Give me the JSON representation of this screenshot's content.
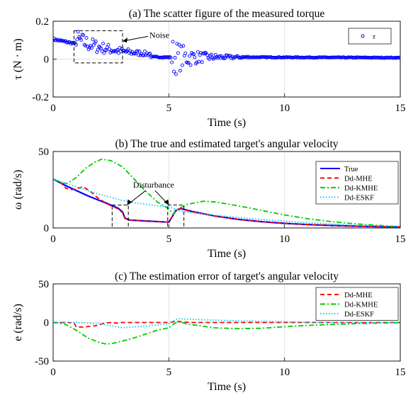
{
  "chart_data": [
    {
      "type": "scatter",
      "title": "(a) The scatter figure of the measured torque",
      "xlabel": "Time (s)",
      "ylabel": "τ (N · m)",
      "xlim": [
        0,
        15
      ],
      "ylim": [
        -0.2,
        0.2
      ],
      "xticks": [
        "0",
        "5",
        "10",
        "15"
      ],
      "yticks": [
        "-0.2",
        "0",
        "0.2"
      ],
      "grid": true,
      "legend_position": "top-right",
      "series": [
        {
          "name": "τ",
          "color": "#0000ff",
          "marker": "circle",
          "points": []
        }
      ],
      "annotations": [
        {
          "text": "Noise",
          "x": 4.1,
          "y": 0.11
        }
      ]
    },
    {
      "type": "line",
      "title": "(b) The true and estimated target's angular velocity",
      "xlabel": "Time (s)",
      "ylabel": "ω (rad/s)",
      "xlim": [
        0,
        15
      ],
      "ylim": [
        0,
        50
      ],
      "xticks": [
        "0",
        "5",
        "10",
        "15"
      ],
      "yticks": [
        "0",
        "50"
      ],
      "grid": true,
      "legend_position": "top-right",
      "series": [
        {
          "name": "True",
          "color": "#0000ff",
          "dash": "solid",
          "x": [
            0,
            0.5,
            1,
            1.5,
            2,
            2.5,
            2.8,
            3.0,
            3.1,
            3.3,
            4,
            5,
            5.15,
            5.3,
            5.5,
            6,
            7,
            8,
            9,
            10,
            11,
            12,
            13,
            14,
            15
          ],
          "y": [
            32,
            28,
            24.5,
            21,
            18,
            15,
            13,
            10.5,
            6.5,
            5.2,
            4.6,
            3.8,
            7.5,
            11.5,
            12.8,
            10.8,
            7.8,
            5.6,
            4.1,
            3.0,
            2.2,
            1.6,
            1.2,
            0.9,
            0.7
          ]
        },
        {
          "name": "Dd-MHE",
          "color": "#ff0000",
          "dash": "dashed",
          "x": [
            0,
            0.3,
            0.55,
            0.8,
            1.1,
            1.3,
            1.6,
            1.9,
            2.2,
            2.5,
            2.8,
            3.0,
            3.1,
            3.3,
            4,
            5,
            5.2,
            5.4,
            5.6,
            6,
            7,
            8,
            9,
            10,
            11,
            12,
            13,
            14,
            15
          ],
          "y": [
            32,
            30,
            26,
            25,
            26,
            27,
            24,
            20,
            17,
            14.5,
            12.5,
            10,
            6.2,
            5.3,
            4.5,
            3.8,
            9,
            12.6,
            12.2,
            10.5,
            7.8,
            5.6,
            4.1,
            3.0,
            2.2,
            1.6,
            1.2,
            0.9,
            0.7
          ]
        },
        {
          "name": "Dd-KMHE",
          "color": "#00cc00",
          "dash": "dashdot",
          "x": [
            0,
            0.3,
            0.6,
            1.0,
            1.4,
            1.8,
            2.1,
            2.5,
            3.0,
            3.5,
            4.0,
            4.5,
            5.0,
            5.2,
            5.4,
            5.8,
            6.5,
            7,
            8,
            9,
            10,
            11,
            12,
            13,
            14,
            15
          ],
          "y": [
            32,
            30,
            29,
            33,
            39,
            43,
            45,
            44,
            40,
            32,
            24,
            17,
            12.5,
            9,
            12.5,
            15.5,
            17.5,
            17,
            14.5,
            11.5,
            8.5,
            6,
            4.2,
            2.8,
            1.7,
            0.9
          ]
        },
        {
          "name": "Dd-ESKF",
          "color": "#00ccff",
          "dash": "dotted",
          "x": [
            0,
            0.5,
            1,
            1.5,
            2,
            2.5,
            3,
            3.5,
            4,
            4.5,
            5,
            5.2,
            5.5,
            6,
            7,
            8,
            9,
            10,
            11,
            12,
            13,
            14,
            15
          ],
          "y": [
            32,
            29.5,
            27,
            24.5,
            22,
            20,
            18,
            16.5,
            15.5,
            14.5,
            13.8,
            12.8,
            11,
            10,
            8.3,
            6.8,
            5.5,
            4.4,
            3.4,
            2.6,
            1.9,
            1.3,
            0.8
          ]
        }
      ],
      "annotations": [
        {
          "text": "Disturbance",
          "x": 3.4,
          "y": 27
        }
      ]
    },
    {
      "type": "line",
      "title": "(c) The estimation error of target's angular velocity",
      "xlabel": "Time (s)",
      "ylabel": "e (rad/s)",
      "xlim": [
        0,
        15
      ],
      "ylim": [
        -50,
        50
      ],
      "xticks": [
        "0",
        "5",
        "10",
        "15"
      ],
      "yticks": [
        "-50",
        "0",
        "50"
      ],
      "grid": true,
      "legend_position": "top-right",
      "series": [
        {
          "name": "Dd-MHE",
          "color": "#ff0000",
          "dash": "dashed",
          "x": [
            0,
            0.5,
            0.9,
            1.0,
            1.3,
            1.6,
            1.9,
            2.2,
            2.5,
            2.8,
            3.0,
            3.3,
            4,
            5,
            5.2,
            5.4,
            5.7,
            6,
            7,
            8,
            9,
            10,
            15
          ],
          "y": [
            0,
            0,
            -0.5,
            -6,
            -6,
            -5,
            -4,
            -1,
            0,
            -1,
            0,
            0,
            0,
            0,
            1,
            1.5,
            0.5,
            0,
            0,
            0,
            0,
            0,
            0
          ]
        },
        {
          "name": "Dd-KMHE",
          "color": "#00cc00",
          "dash": "dashdot",
          "x": [
            0,
            0.5,
            1.0,
            1.5,
            2.0,
            2.3,
            2.6,
            3.0,
            3.5,
            4.0,
            4.5,
            5.0,
            5.2,
            5.4,
            5.8,
            6.5,
            7,
            8,
            9,
            10,
            11,
            12,
            13,
            14,
            15
          ],
          "y": [
            0,
            -2,
            -10,
            -20,
            -26,
            -28,
            -27,
            -24,
            -20,
            -15,
            -10,
            -7,
            -2,
            1,
            -2,
            -5,
            -7,
            -8,
            -7.5,
            -5.5,
            -3.8,
            -2.6,
            -1.6,
            -0.9,
            -0.4
          ]
        },
        {
          "name": "Dd-ESKF",
          "color": "#00ccff",
          "dash": "dotted",
          "x": [
            0,
            0.5,
            1,
            1.5,
            2,
            2.5,
            3,
            3.3,
            4,
            4.5,
            5,
            5.2,
            5.4,
            6,
            7,
            8,
            9,
            10,
            11,
            12,
            13,
            14,
            15
          ],
          "y": [
            0,
            0,
            0,
            -1,
            -2,
            -4,
            -7,
            -6,
            -5,
            -3,
            -2,
            2,
            5,
            4,
            3,
            2,
            1.5,
            1,
            0.5,
            0.3,
            0.1,
            0,
            0
          ]
        }
      ]
    }
  ]
}
